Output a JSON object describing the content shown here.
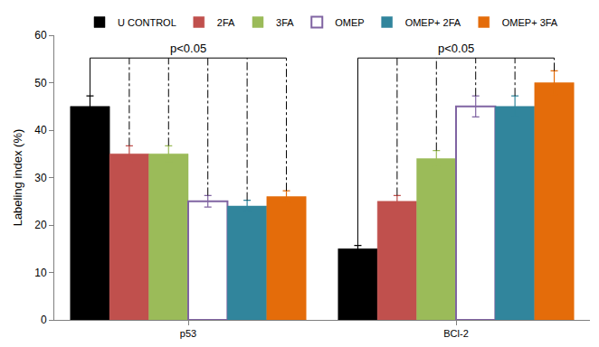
{
  "chart_data": {
    "type": "bar",
    "y_label": "Labeling index (%)",
    "categories": [
      "p53",
      "BCl-2"
    ],
    "series": [
      {
        "name": "U CONTROL",
        "color": "#000000",
        "values": [
          45,
          15
        ],
        "errors": [
          2.2,
          0.7
        ]
      },
      {
        "name": "2FA",
        "color": "#c0504d",
        "values": [
          35,
          25
        ],
        "errors": [
          1.7,
          1.2
        ]
      },
      {
        "name": "3FA",
        "color": "#9bbb59",
        "values": [
          35,
          34
        ],
        "errors": [
          1.7,
          1.7
        ]
      },
      {
        "name": "OMEP",
        "color": "#ffffff",
        "values": [
          25,
          45
        ],
        "errors": [
          1.2,
          2.2
        ]
      },
      {
        "name": "OMEP+ 2FA",
        "color": "#31859c",
        "values": [
          24,
          45
        ],
        "errors": [
          1.2,
          2.2
        ]
      },
      {
        "name": "OMEP+ 3FA",
        "color": "#e46c0a",
        "values": [
          26,
          50
        ],
        "errors": [
          1.2,
          2.5
        ]
      }
    ],
    "annotations": [
      {
        "text": "p<0.05",
        "category": "p53"
      },
      {
        "text": "p<0.05",
        "category": "BCl-2"
      }
    ],
    "ylim": [
      0,
      60
    ],
    "yticks": [
      0,
      10,
      20,
      30,
      40,
      50,
      60
    ],
    "grid": false,
    "legend": "top"
  }
}
